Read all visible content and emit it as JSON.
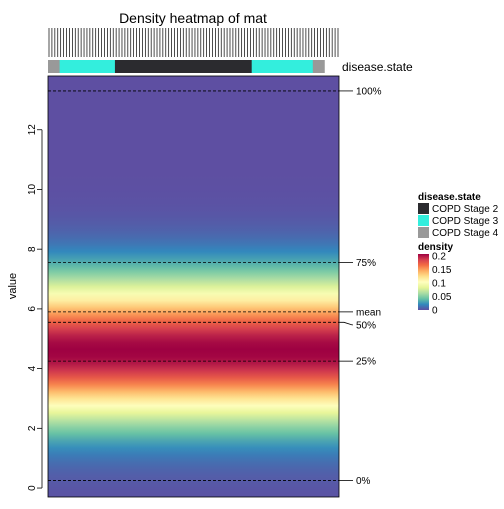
{
  "chart_data": {
    "type": "heatmap",
    "title": "Density heatmap of mat",
    "ylabel": "value",
    "ylim": [
      -0.3,
      13.8
    ],
    "y_ticks": [
      0,
      2,
      4,
      6,
      8,
      10,
      12
    ],
    "annotation": {
      "name": "disease.state",
      "columns": [
        "COPD Stage 4",
        "COPD Stage 3",
        "COPD Stage 2",
        "COPD Stage 3",
        "COPD Stage 4"
      ],
      "column_fractions": [
        0.04,
        0.19,
        0.47,
        0.21,
        0.04
      ]
    },
    "quantiles": [
      {
        "label": "100%",
        "value": 13.3
      },
      {
        "label": "75%",
        "value": 7.55
      },
      {
        "label": "mean",
        "value": 5.9
      },
      {
        "label": "50%",
        "value": 5.55
      },
      {
        "label": "25%",
        "value": 4.25
      },
      {
        "label": "0%",
        "value": 0.25
      }
    ],
    "density_profile": {
      "peak_value": 4.6,
      "spread": 1.55,
      "max_density": 0.2
    },
    "legend": {
      "position": "right",
      "annotation_title": "disease.state",
      "annotation_entries": [
        {
          "label": "COPD Stage 2",
          "color": "#2b2b2f"
        },
        {
          "label": "COPD Stage 3",
          "color": "#33eedd"
        },
        {
          "label": "COPD Stage 4",
          "color": "#999999"
        }
      ],
      "density_title": "density",
      "density_ticks": [
        "0.2",
        "0.15",
        "0.1",
        "0.05",
        "0"
      ]
    },
    "colorscale": [
      "#5e4fa2",
      "#3288bd",
      "#66c2a5",
      "#abdda4",
      "#e6f598",
      "#ffffbf",
      "#fee08b",
      "#fdae61",
      "#f46d43",
      "#d53e4f",
      "#9e0142"
    ]
  }
}
